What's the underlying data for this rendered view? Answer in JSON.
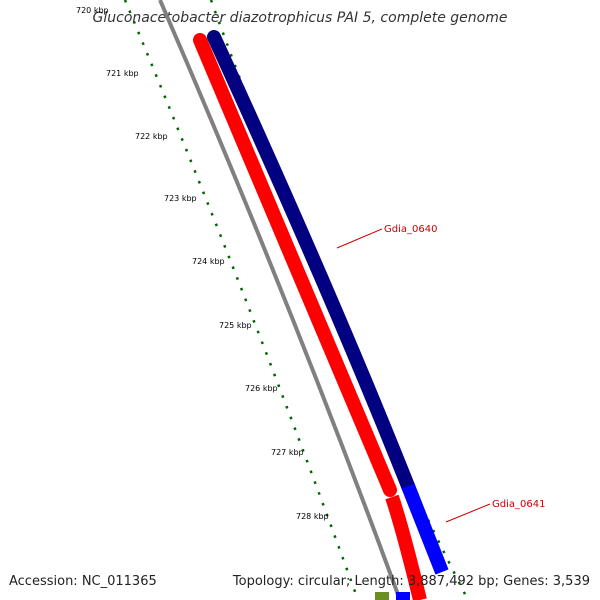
{
  "title": "Gluconacetobacter diazotrophicus PAI 5, complete genome",
  "footer": {
    "accession": "Accession: NC_011365",
    "summary": "Topology: circular; Length: 3,887,492 bp; Genes: 3,539"
  },
  "ruler": {
    "ticks": [
      "720 kbp",
      "721 kbp",
      "722 kbp",
      "723 kbp",
      "724 kbp",
      "725 kbp",
      "726 kbp",
      "727 kbp",
      "728 kbp"
    ]
  },
  "features": [
    {
      "name": "Gdia_0640",
      "strand": "forward",
      "color": "#000080"
    },
    {
      "name": "Gdia_0641",
      "strand": "forward",
      "color": "#0000ff"
    },
    {
      "name": "",
      "strand": "reverse",
      "color": "#ff0000"
    }
  ],
  "colors": {
    "backbone": "#808080",
    "tick": "#006400",
    "label": "#cc0000",
    "forward_cds": "#000080",
    "forward_cds_2": "#0000ff",
    "reverse_cds": "#ff0000"
  }
}
